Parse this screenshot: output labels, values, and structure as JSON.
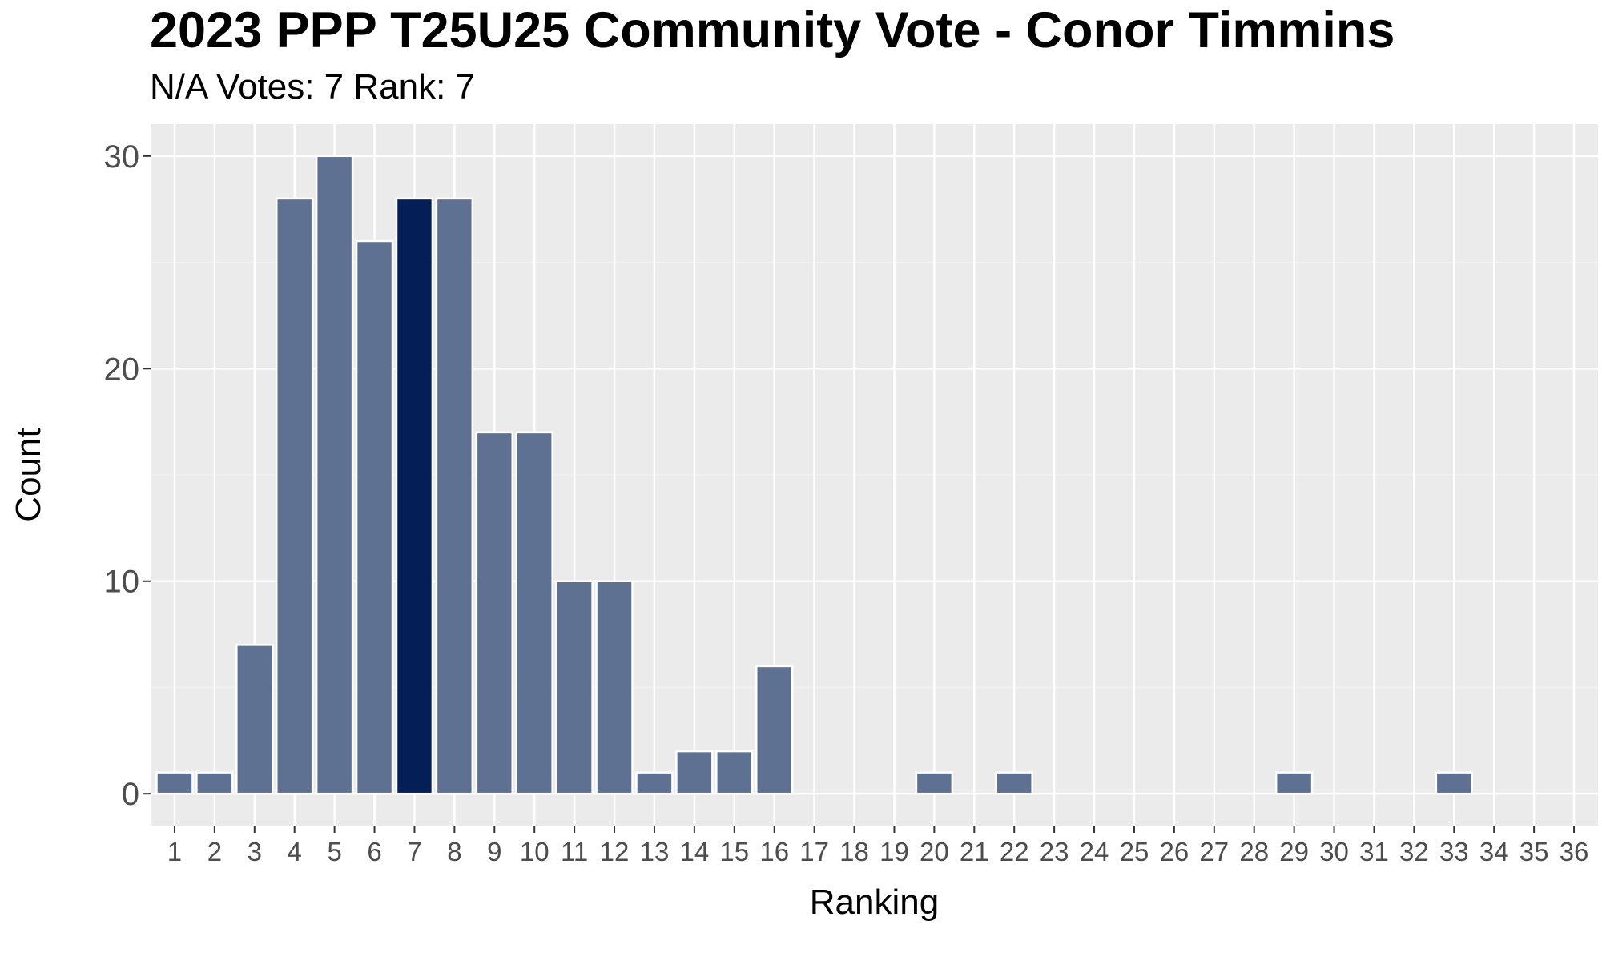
{
  "chart_data": {
    "type": "bar",
    "title": "2023 PPP T25U25 Community Vote - Conor Timmins",
    "subtitle": "N/A Votes: 7  Rank: 7",
    "xlabel": "Ranking",
    "ylabel": "Count",
    "categories": [
      "1",
      "2",
      "3",
      "4",
      "5",
      "6",
      "7",
      "8",
      "9",
      "10",
      "11",
      "12",
      "13",
      "14",
      "15",
      "16",
      "17",
      "18",
      "19",
      "20",
      "21",
      "22",
      "23",
      "24",
      "25",
      "26",
      "27",
      "28",
      "29",
      "30",
      "31",
      "32",
      "33",
      "34",
      "35",
      "36"
    ],
    "values": [
      1,
      1,
      7,
      28,
      30,
      26,
      28,
      28,
      17,
      17,
      10,
      10,
      1,
      2,
      2,
      6,
      0,
      0,
      0,
      1,
      0,
      1,
      0,
      0,
      0,
      0,
      0,
      0,
      1,
      0,
      0,
      0,
      1,
      0,
      0,
      0
    ],
    "highlight_category": "7",
    "ylim": [
      -1.5,
      31.5
    ],
    "xlim": [
      0.4,
      36.6
    ],
    "y_ticks": [
      0,
      10,
      20,
      30
    ],
    "grid": true,
    "legend": "none",
    "colors": {
      "bar": "#5e7193",
      "highlight": "#041e56",
      "bar_outline": "#ffffff",
      "panel": "#ebebeb",
      "grid_major": "#ffffff",
      "grid_minor": "#f2f2f2"
    }
  }
}
